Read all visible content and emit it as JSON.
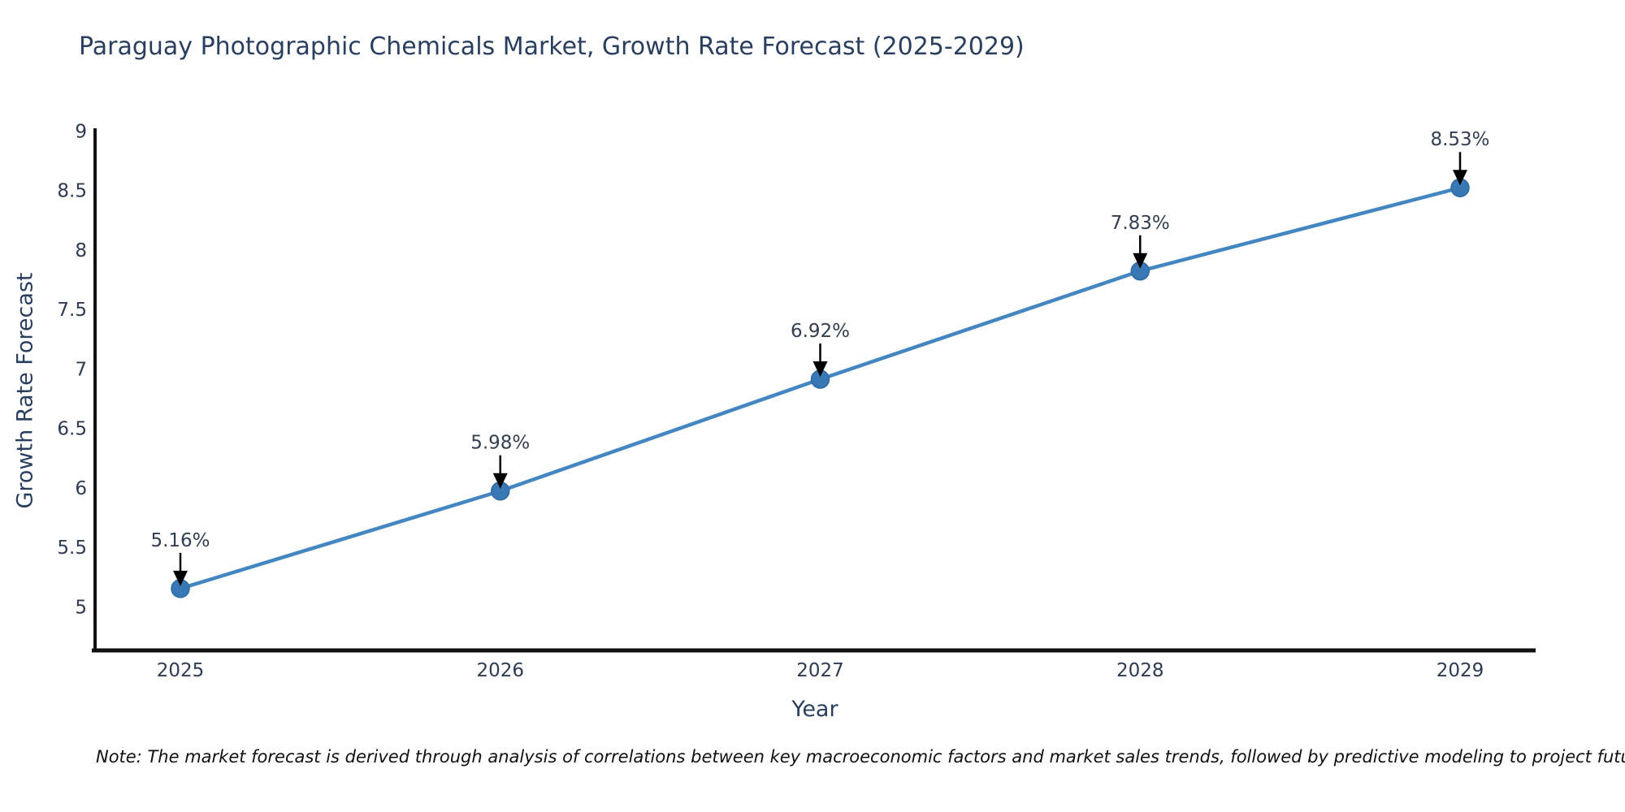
{
  "page": {
    "background": "#ffffff"
  },
  "chart_data": {
    "type": "line",
    "title": "Paraguay Photographic Chemicals Market, Growth Rate Forecast (2025-2029)",
    "xlabel": "Year",
    "ylabel": "Growth Rate Forecast",
    "categories": [
      2025,
      2026,
      2027,
      2028,
      2029
    ],
    "values": [
      5.16,
      5.98,
      6.92,
      7.83,
      8.53
    ],
    "point_labels": [
      "5.16%",
      "5.98%",
      "6.92%",
      "7.83%",
      "8.53%"
    ],
    "ylim": [
      4.64,
      9.03
    ],
    "yticks": [
      5,
      5.5,
      6,
      6.5,
      7,
      7.5,
      8,
      8.5,
      9
    ],
    "grid": false,
    "legend": false,
    "annotation_style": "down-arrow-to-marker",
    "colors": {
      "line": "#4386c1",
      "marker": "#3878b4",
      "marker_edge": "#2f6ba3",
      "axis": "#111111",
      "tick_text": "#2f3b52",
      "annotation_text": "#333f50",
      "arrow": "#000000",
      "title_text": "#2a3f5f"
    }
  },
  "note": "Note: The market forecast is derived through analysis of correlations between key macroeconomic factors and market sales trends, followed by predictive modeling to project future sales"
}
